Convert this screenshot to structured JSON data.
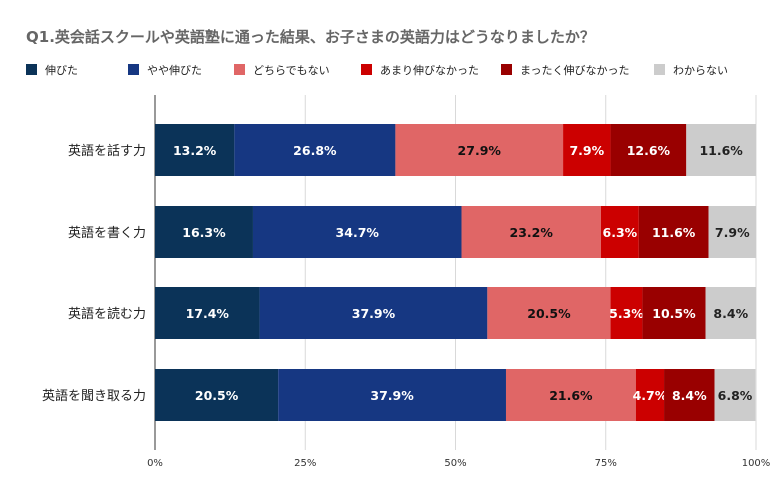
{
  "chart_data": {
    "type": "bar",
    "orientation": "horizontal",
    "stacked": true,
    "title": "Q1.英会話スクールや英語塾に通った結果、お子さまの英語力はどうなりましたか？",
    "categories": [
      "英語を話す力",
      "英語を書く力",
      "英語を読む力",
      "英語を聞き取る力"
    ],
    "series": [
      {
        "name": "伸びた",
        "color": "#0b3358",
        "label_color": "#ffffff",
        "values": [
          13.2,
          16.3,
          17.4,
          20.5
        ]
      },
      {
        "name": "やや伸びた",
        "color": "#163782",
        "label_color": "#ffffff",
        "values": [
          26.8,
          34.7,
          37.9,
          37.9
        ]
      },
      {
        "name": "どちらでもない",
        "color": "#e06666",
        "label_color": "#111111",
        "values": [
          27.9,
          23.2,
          20.5,
          21.6
        ]
      },
      {
        "name": "あまり伸びなかった",
        "color": "#cc0000",
        "label_color": "#ffffff",
        "values": [
          7.9,
          6.3,
          5.3,
          4.7
        ]
      },
      {
        "name": "まったく伸びなかった",
        "color": "#990000",
        "label_color": "#ffffff",
        "values": [
          12.6,
          11.6,
          10.5,
          8.4
        ]
      },
      {
        "name": "わからない",
        "color": "#cccccc",
        "label_color": "#222222",
        "values": [
          11.6,
          7.9,
          8.4,
          6.8
        ]
      }
    ],
    "xlim": [
      0,
      100
    ],
    "x_ticks": [
      "0%",
      "25%",
      "50%",
      "75%",
      "100%"
    ],
    "grid": true,
    "legend_position": "top"
  }
}
